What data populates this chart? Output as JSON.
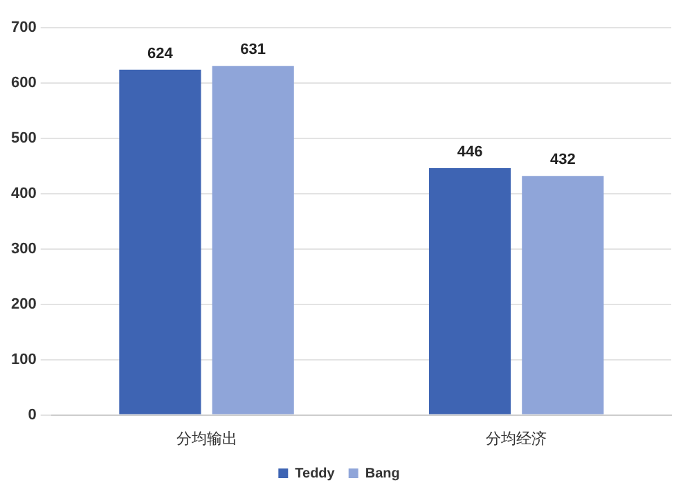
{
  "chart_data": {
    "type": "bar",
    "categories": [
      "分均输出",
      "分均经济"
    ],
    "series": [
      {
        "name": "Teddy",
        "color": "#3e64b3",
        "values": [
          624,
          446
        ]
      },
      {
        "name": "Bang",
        "color": "#8fa5d9",
        "values": [
          631,
          432
        ]
      }
    ],
    "ylim": [
      0,
      700
    ],
    "yticks": [
      0,
      100,
      200,
      300,
      400,
      500,
      600,
      700
    ],
    "grid": "y",
    "legend": "bottom",
    "data_labels": true
  }
}
